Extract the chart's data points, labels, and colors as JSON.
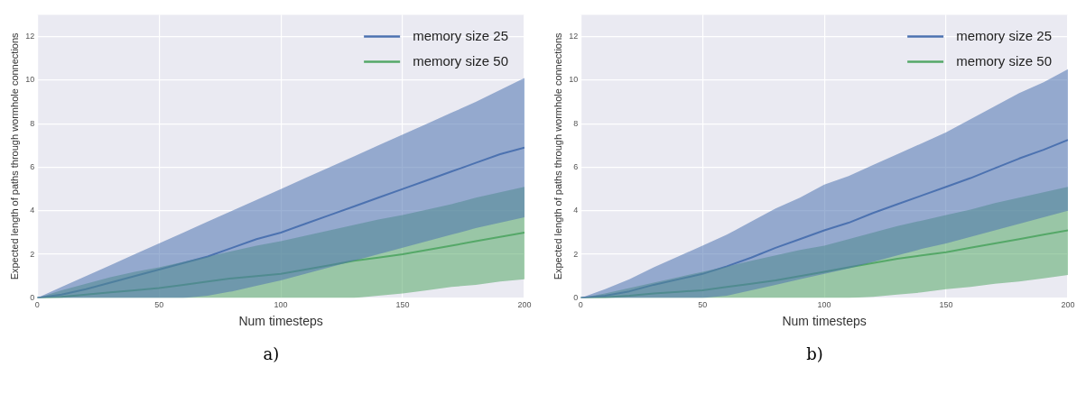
{
  "chart_data": [
    {
      "type": "line",
      "xlabel": "Num timesteps",
      "ylabel": "Expected length of paths through wormhole connections",
      "annotations": [
        "a)"
      ],
      "x": [
        0,
        10,
        20,
        30,
        40,
        50,
        60,
        70,
        80,
        90,
        100,
        110,
        120,
        130,
        140,
        150,
        160,
        170,
        180,
        190,
        200
      ],
      "series": [
        {
          "name": "memory size 25",
          "color": "#4c72b0",
          "values": [
            0,
            0.15,
            0.4,
            0.7,
            1.0,
            1.3,
            1.6,
            1.9,
            2.3,
            2.7,
            3.0,
            3.4,
            3.8,
            4.2,
            4.6,
            5.0,
            5.4,
            5.8,
            6.2,
            6.6,
            6.9
          ],
          "lower": [
            0,
            0,
            0,
            0,
            0,
            0,
            0,
            0.1,
            0.3,
            0.55,
            0.8,
            1.1,
            1.4,
            1.7,
            2.0,
            2.3,
            2.6,
            2.9,
            3.2,
            3.45,
            3.7
          ],
          "upper": [
            0,
            0.5,
            1.0,
            1.5,
            2.0,
            2.5,
            3.0,
            3.5,
            4.0,
            4.5,
            5.0,
            5.5,
            6.0,
            6.5,
            7.0,
            7.5,
            8.0,
            8.5,
            9.0,
            9.55,
            10.1
          ]
        },
        {
          "name": "memory size 50",
          "color": "#55a868",
          "values": [
            0,
            0.05,
            0.15,
            0.25,
            0.35,
            0.45,
            0.6,
            0.75,
            0.9,
            1.0,
            1.1,
            1.3,
            1.5,
            1.7,
            1.85,
            2.0,
            2.2,
            2.4,
            2.6,
            2.8,
            3.0
          ],
          "lower": [
            0,
            0,
            0,
            0,
            0,
            0,
            0,
            0,
            0,
            0,
            0,
            0,
            0,
            0,
            0.1,
            0.2,
            0.35,
            0.5,
            0.6,
            0.75,
            0.85
          ],
          "upper": [
            0,
            0.35,
            0.65,
            0.95,
            1.2,
            1.4,
            1.65,
            1.9,
            2.15,
            2.4,
            2.6,
            2.85,
            3.1,
            3.35,
            3.6,
            3.8,
            4.05,
            4.3,
            4.6,
            4.85,
            5.1
          ]
        }
      ],
      "xlim": [
        0,
        200
      ],
      "xticks": [
        0,
        50,
        100,
        150,
        200
      ],
      "ylim": [
        0,
        13
      ],
      "yticks": [
        0,
        2,
        4,
        6,
        8,
        10,
        12
      ],
      "grid": true,
      "legend": "top right"
    },
    {
      "type": "line",
      "xlabel": "Num timesteps",
      "ylabel": "Expected length of paths through wormhole connections",
      "annotations": [
        "b)"
      ],
      "x": [
        0,
        10,
        20,
        30,
        40,
        50,
        60,
        70,
        80,
        90,
        100,
        110,
        120,
        130,
        140,
        150,
        160,
        170,
        180,
        190,
        200
      ],
      "series": [
        {
          "name": "memory size 25",
          "color": "#4c72b0",
          "values": [
            0,
            0.1,
            0.3,
            0.6,
            0.85,
            1.1,
            1.45,
            1.85,
            2.3,
            2.7,
            3.1,
            3.45,
            3.9,
            4.3,
            4.7,
            5.1,
            5.5,
            5.95,
            6.4,
            6.8,
            7.25
          ],
          "lower": [
            0,
            0,
            0,
            0,
            0,
            0,
            0.1,
            0.35,
            0.6,
            0.85,
            1.1,
            1.35,
            1.65,
            1.95,
            2.25,
            2.5,
            2.8,
            3.1,
            3.4,
            3.7,
            4.0
          ],
          "upper": [
            0,
            0.4,
            0.85,
            1.4,
            1.9,
            2.4,
            2.9,
            3.5,
            4.1,
            4.6,
            5.2,
            5.6,
            6.1,
            6.6,
            7.1,
            7.6,
            8.2,
            8.8,
            9.4,
            9.9,
            10.5
          ]
        },
        {
          "name": "memory size 50",
          "color": "#55a868",
          "values": [
            0,
            0.03,
            0.1,
            0.2,
            0.28,
            0.35,
            0.5,
            0.65,
            0.8,
            1.0,
            1.2,
            1.4,
            1.6,
            1.8,
            1.95,
            2.1,
            2.3,
            2.5,
            2.7,
            2.9,
            3.1
          ],
          "lower": [
            0,
            0,
            0,
            0,
            0,
            0,
            0,
            0,
            0,
            0,
            0,
            0,
            0.05,
            0.15,
            0.25,
            0.4,
            0.5,
            0.65,
            0.75,
            0.9,
            1.05
          ],
          "upper": [
            0,
            0.2,
            0.45,
            0.7,
            0.95,
            1.2,
            1.45,
            1.7,
            1.95,
            2.2,
            2.4,
            2.7,
            3.0,
            3.3,
            3.55,
            3.8,
            4.05,
            4.35,
            4.6,
            4.85,
            5.1
          ]
        }
      ],
      "xlim": [
        0,
        200
      ],
      "xticks": [
        0,
        50,
        100,
        150,
        200
      ],
      "ylim": [
        0,
        13
      ],
      "yticks": [
        0,
        2,
        4,
        6,
        8,
        10,
        12
      ],
      "grid": true,
      "legend": "top right"
    }
  ]
}
